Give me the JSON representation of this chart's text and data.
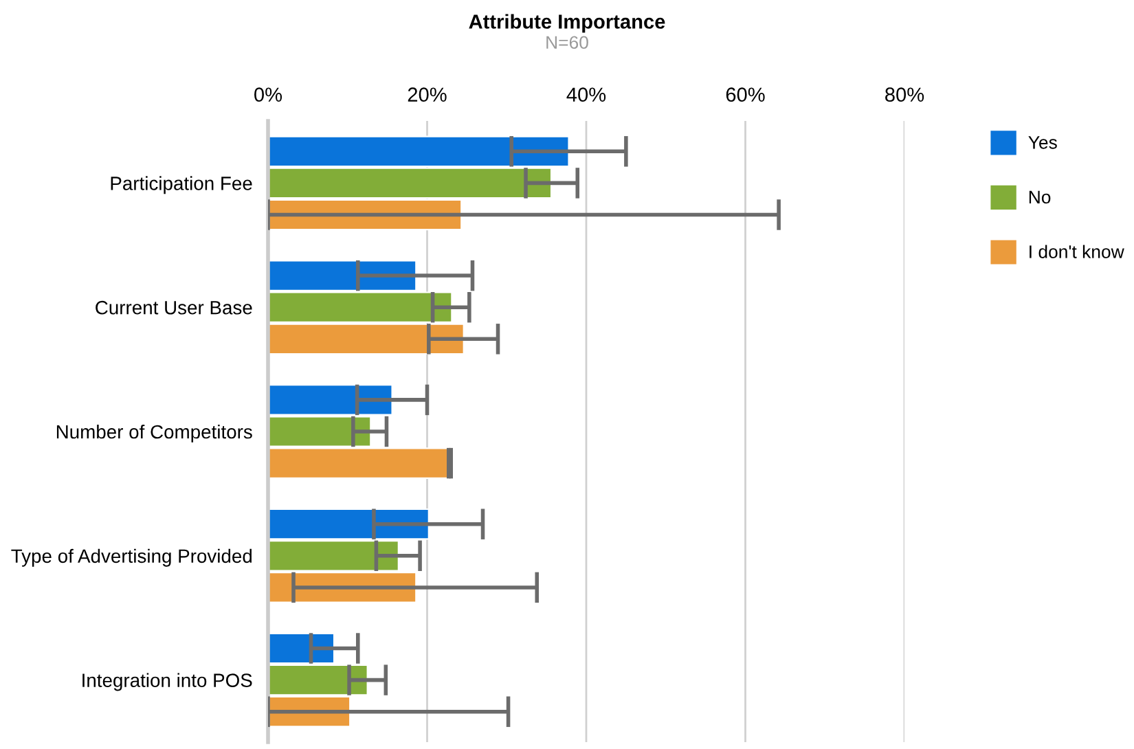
{
  "chart_data": {
    "type": "bar",
    "orientation": "horizontal",
    "title": "Attribute Importance",
    "subtitle": "N=60",
    "categories": [
      "Participation Fee",
      "Current User Base",
      "Number of Competitors",
      "Type of Advertising Provided",
      "Integration into POS"
    ],
    "series": [
      {
        "name": "Yes",
        "color": "#0a74da",
        "values": [
          37.8,
          18.6,
          15.6,
          20.2,
          8.3
        ],
        "errors": [
          [
            30.6,
            45.0
          ],
          [
            11.3,
            25.7
          ],
          [
            11.2,
            20.0
          ],
          [
            13.3,
            27.0
          ],
          [
            5.4,
            11.3
          ]
        ]
      },
      {
        "name": "No",
        "color": "#82ad38",
        "values": [
          35.6,
          23.1,
          12.9,
          16.4,
          12.5
        ],
        "errors": [
          [
            32.4,
            38.9
          ],
          [
            20.7,
            25.3
          ],
          [
            10.7,
            14.9
          ],
          [
            13.6,
            19.1
          ],
          [
            10.2,
            14.8
          ]
        ]
      },
      {
        "name": "I don't know",
        "color": "#eb9b3c",
        "values": [
          24.3,
          24.6,
          22.8,
          18.6,
          10.3
        ],
        "errors": [
          [
            0,
            64.2
          ],
          [
            20.2,
            28.9
          ],
          [
            22.7,
            23.0
          ],
          [
            3.2,
            33.8
          ],
          [
            0,
            30.2
          ]
        ]
      }
    ],
    "xlim": [
      0,
      80
    ],
    "xticks": [
      {
        "value": 0,
        "label": "0%"
      },
      {
        "value": 20,
        "label": "20%"
      },
      {
        "value": 40,
        "label": "40%"
      },
      {
        "value": 60,
        "label": "60%"
      },
      {
        "value": 80,
        "label": "80%"
      }
    ],
    "grid": "x",
    "legend": "top right"
  }
}
